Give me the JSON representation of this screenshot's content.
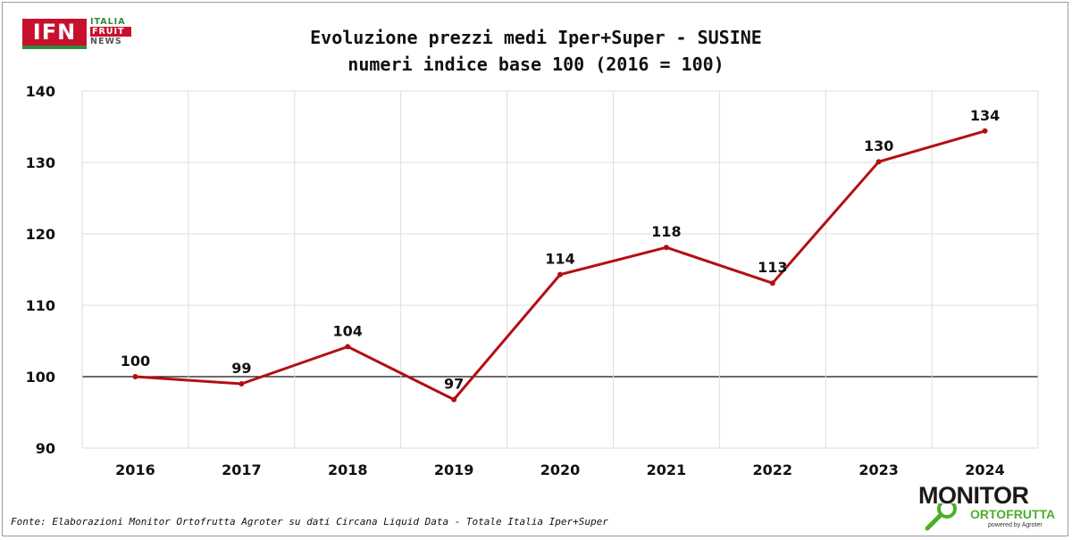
{
  "logo_ifn": {
    "main": "IFN",
    "line1": "ITALIA",
    "line2": "FRUIT",
    "line3": "NEWS"
  },
  "logo_monitor": {
    "main": "MONITOR",
    "sub": "ORTOFRUTTA",
    "tag": "powered by Agroter"
  },
  "source_note": "Fonte: Elaborazioni Monitor Ortofrutta Agroter su dati Circana Liquid Data - Totale Italia Iper+Super",
  "colors": {
    "line": "#b30f13",
    "grid": "#dddddd",
    "baseline": "#111111"
  },
  "chart_data": {
    "type": "line",
    "title": "Evoluzione prezzi medi Iper+Super - SUSINE",
    "subtitle": "numeri indice base 100 (2016 = 100)",
    "xlabel": "",
    "ylabel": "",
    "categories": [
      "2016",
      "2017",
      "2018",
      "2019",
      "2020",
      "2021",
      "2022",
      "2023",
      "2024"
    ],
    "series": [
      {
        "values": [
          100,
          99,
          104.2,
          96.8,
          114.3,
          118.1,
          113.1,
          130.1,
          134.4
        ],
        "labels": [
          "100",
          "99",
          "104",
          "97",
          "114",
          "118",
          "113",
          "130",
          "134"
        ]
      }
    ],
    "ylim": [
      90,
      140
    ],
    "yticks": [
      "90",
      "100",
      "110",
      "120",
      "130",
      "140"
    ],
    "reference_line": 100,
    "grid": true,
    "legend": "none"
  }
}
